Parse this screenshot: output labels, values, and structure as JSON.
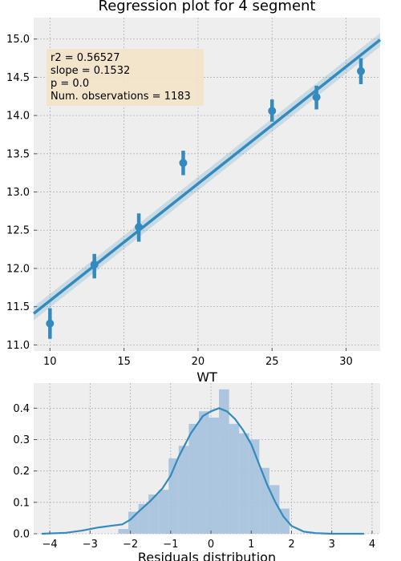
{
  "chart_data": [
    {
      "type": "scatter",
      "title": "Regression plot for 4 segment",
      "xlabel": "WT",
      "ylabel": "",
      "xlim": [
        8.9,
        32.3
      ],
      "ylim": [
        10.92,
        15.28
      ],
      "xticks": [
        10,
        15,
        20,
        25,
        30
      ],
      "yticks": [
        11.0,
        11.5,
        12.0,
        12.5,
        13.0,
        13.5,
        14.0,
        14.5,
        15.0
      ],
      "grid": true,
      "points": [
        {
          "x": 10,
          "y": 11.28,
          "ci": [
            11.08,
            11.48
          ]
        },
        {
          "x": 13,
          "y": 12.05,
          "ci": [
            11.87,
            12.19
          ]
        },
        {
          "x": 16,
          "y": 12.54,
          "ci": [
            12.35,
            12.72
          ]
        },
        {
          "x": 19,
          "y": 13.38,
          "ci": [
            13.22,
            13.54
          ]
        },
        {
          "x": 25,
          "y": 14.06,
          "ci": [
            13.92,
            14.21
          ]
        },
        {
          "x": 28,
          "y": 14.24,
          "ci": [
            14.08,
            14.39
          ]
        },
        {
          "x": 31,
          "y": 14.58,
          "ci": [
            14.41,
            14.75
          ]
        }
      ],
      "fit_line": {
        "x": [
          8.9,
          32.3
        ],
        "y": [
          11.41,
          14.99
        ],
        "band": 0.055
      },
      "annotation": [
        "r2 = 0.56527",
        "slope = 0.1532",
        "p = 0.0",
        "Num. observations = 1183"
      ],
      "color": "#348abd",
      "annotation_bg": "#f3e3c8"
    },
    {
      "type": "bar",
      "title": "",
      "xlabel": "Residuals distribution",
      "ylabel": "",
      "xlim": [
        -4.4,
        4.2
      ],
      "ylim": [
        0,
        0.48
      ],
      "xticks": [
        -4,
        -3,
        -2,
        -1,
        0,
        1,
        2,
        3,
        4
      ],
      "yticks": [
        0.0,
        0.1,
        0.2,
        0.3,
        0.4
      ],
      "grid": true,
      "histogram": {
        "bin_edges": [
          -2.3,
          -2.05,
          -1.8,
          -1.55,
          -1.3,
          -1.05,
          -0.8,
          -0.55,
          -0.3,
          -0.05,
          0.2,
          0.45,
          0.7,
          0.95,
          1.2,
          1.45,
          1.7,
          1.95
        ],
        "values": [
          0.015,
          0.07,
          0.095,
          0.125,
          0.14,
          0.24,
          0.28,
          0.35,
          0.39,
          0.37,
          0.46,
          0.35,
          0.32,
          0.3,
          0.21,
          0.155,
          0.08
        ]
      },
      "kde": {
        "x": [
          -4.2,
          -3.6,
          -3.2,
          -2.8,
          -2.5,
          -2.2,
          -2.0,
          -1.8,
          -1.5,
          -1.2,
          -1.0,
          -0.8,
          -0.5,
          -0.2,
          0.0,
          0.2,
          0.4,
          0.6,
          0.8,
          1.0,
          1.2,
          1.4,
          1.6,
          1.8,
          2.0,
          2.3,
          2.6,
          3.0,
          3.4,
          3.8
        ],
        "y": [
          0.0,
          0.003,
          0.01,
          0.02,
          0.025,
          0.03,
          0.045,
          0.07,
          0.105,
          0.145,
          0.185,
          0.245,
          0.32,
          0.375,
          0.39,
          0.4,
          0.39,
          0.365,
          0.33,
          0.285,
          0.22,
          0.155,
          0.1,
          0.055,
          0.025,
          0.007,
          0.002,
          0.0,
          0.0,
          0.0
        ]
      },
      "bar_color": "#a6c3dc",
      "line_color": "#348abd"
    }
  ]
}
